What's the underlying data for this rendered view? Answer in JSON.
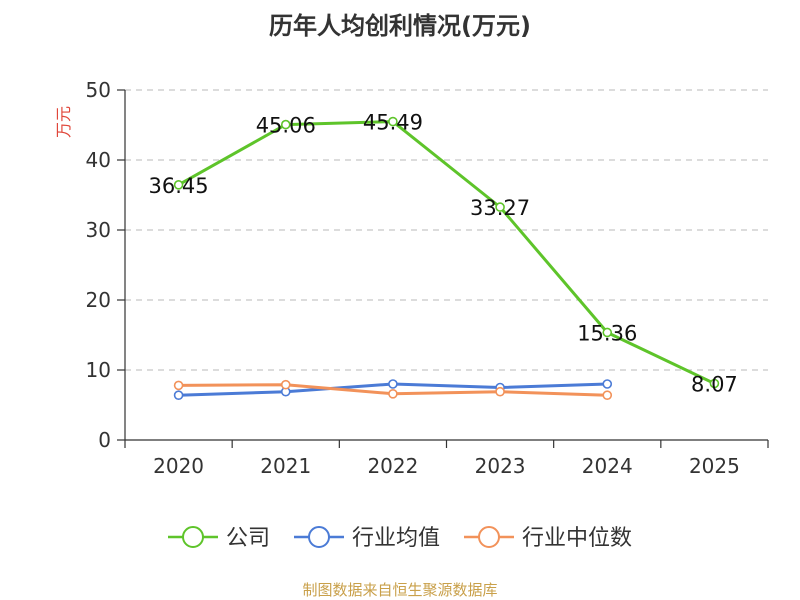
{
  "colors": {
    "company": "#5ec42a",
    "industry_avg": "#4b7bd6",
    "industry_median": "#f2925a",
    "axis": "#333333",
    "grid": "#c8c8c8",
    "unit_label": "#e0463a",
    "source": "#c9a04a"
  },
  "chart_data": {
    "type": "line",
    "title": "历年人均创利情况(万元)",
    "ylabel": "万元",
    "xlabel": "",
    "categories": [
      "2020",
      "2021",
      "2022",
      "2023",
      "2024",
      "2025"
    ],
    "ylim": [
      0,
      50
    ],
    "yticks": [
      0,
      10,
      20,
      30,
      40,
      50
    ],
    "grid": true,
    "legend_position": "bottom",
    "series": [
      {
        "name": "公司",
        "color_key": "company",
        "values": [
          36.45,
          45.06,
          45.49,
          33.27,
          15.36,
          8.07
        ],
        "labels": [
          "36.45",
          "45.06",
          "45.49",
          "33.27",
          "15.36",
          "8.07"
        ]
      },
      {
        "name": "行业均值",
        "color_key": "industry_avg",
        "values": [
          6.4,
          6.9,
          8.0,
          7.5,
          8.0,
          null
        ]
      },
      {
        "name": "行业中位数",
        "color_key": "industry_median",
        "values": [
          7.8,
          7.9,
          6.6,
          6.9,
          6.4,
          null
        ]
      }
    ]
  },
  "source_text": "制图数据来自恒生聚源数据库"
}
